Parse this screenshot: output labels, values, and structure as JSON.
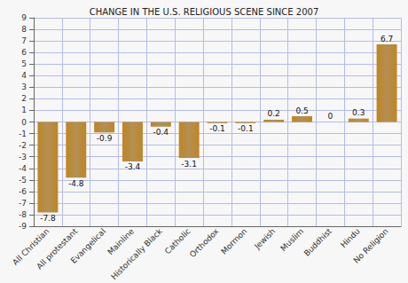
{
  "chart_data": {
    "type": "bar",
    "title": "CHANGE IN THE U.S. RELIGIOUS SCENE SINCE 2007",
    "categories": [
      "All Christian",
      "All protestant",
      "Evangelical",
      "Mainline",
      "Historically Black",
      "Catholic",
      "Orthodox",
      "Mormon",
      "Jewish",
      "Muslim",
      "Buddhist",
      "Hindu",
      "No Religion"
    ],
    "values": [
      -7.8,
      -4.8,
      -0.9,
      -3.4,
      -0.4,
      -3.1,
      -0.1,
      -0.1,
      0.2,
      0.5,
      0,
      0.3,
      6.7
    ],
    "color": "#9a6b1c",
    "ylim": [
      -9,
      9
    ],
    "yticks": [
      -9,
      -8,
      -7,
      -6,
      -5,
      -4,
      -3,
      -2,
      -1,
      0,
      1,
      2,
      3,
      4,
      5,
      6,
      7,
      8,
      9
    ],
    "grid": true,
    "data_labels": true
  }
}
